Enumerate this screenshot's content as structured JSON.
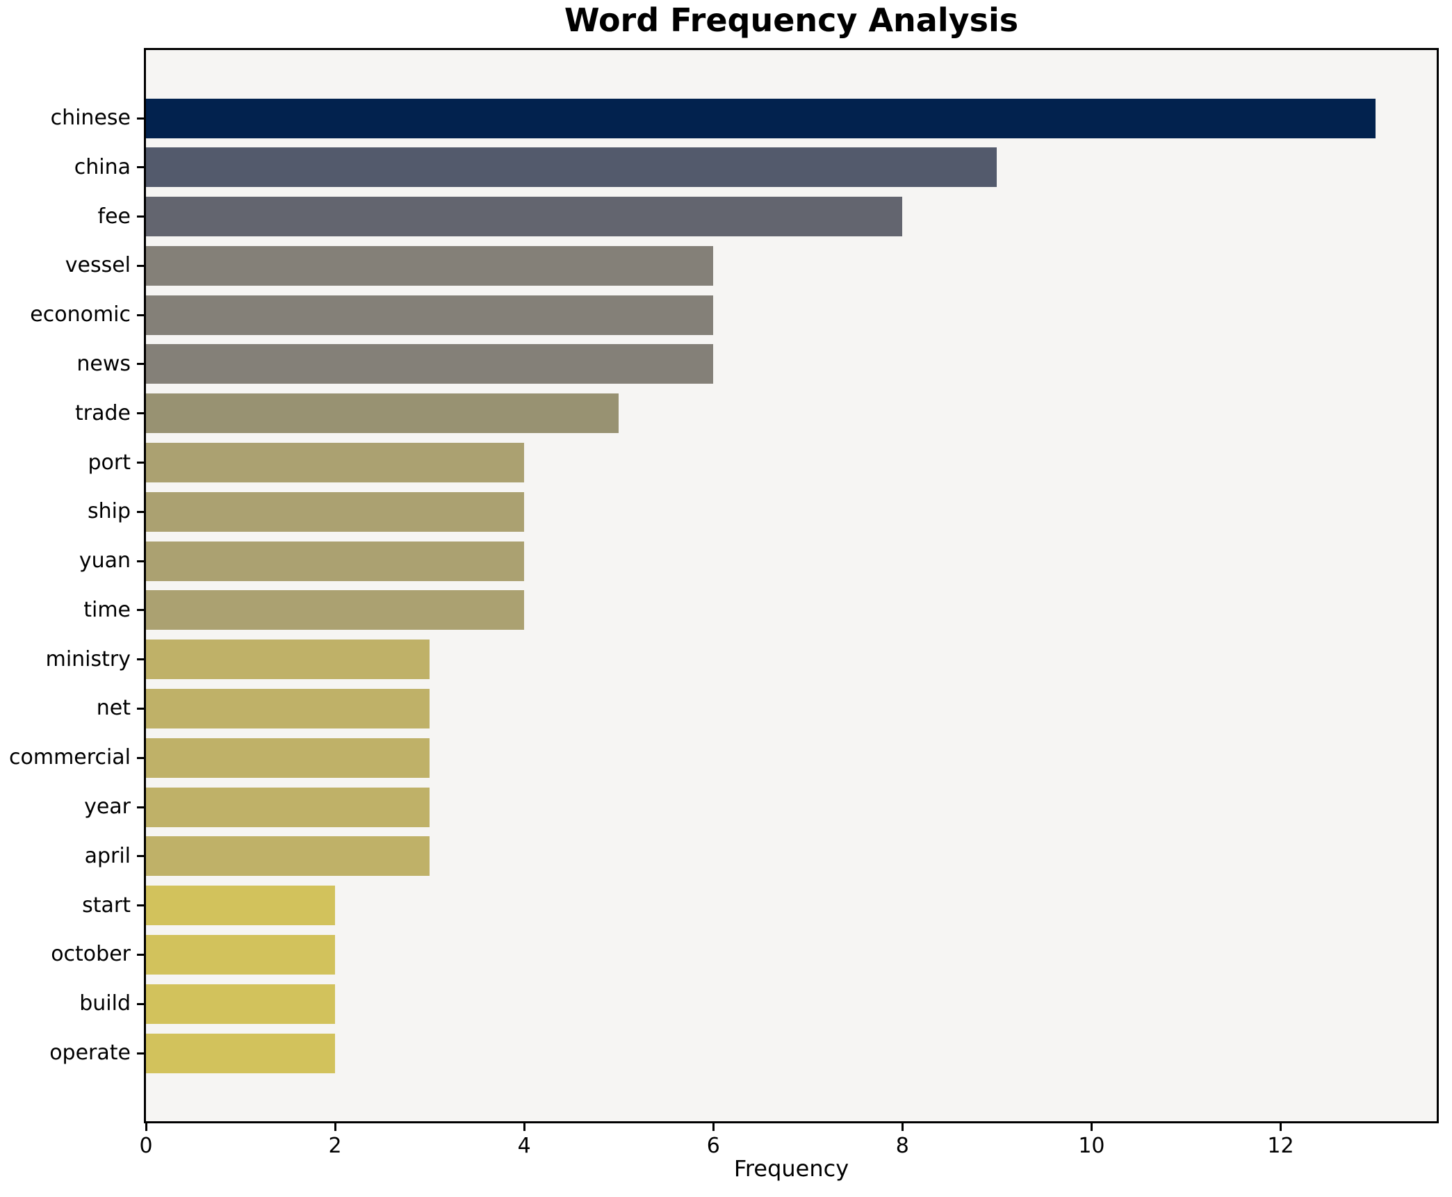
{
  "chart_data": {
    "type": "bar",
    "orientation": "horizontal",
    "title": "Word Frequency Analysis",
    "xlabel": "Frequency",
    "ylabel": "",
    "categories": [
      "chinese",
      "china",
      "fee",
      "vessel",
      "economic",
      "news",
      "trade",
      "port",
      "ship",
      "yuan",
      "time",
      "ministry",
      "net",
      "commercial",
      "year",
      "april",
      "start",
      "october",
      "build",
      "operate"
    ],
    "values": [
      13,
      9,
      8,
      6,
      6,
      6,
      5,
      4,
      4,
      4,
      4,
      3,
      3,
      3,
      3,
      3,
      2,
      2,
      2,
      2
    ],
    "bar_colors": [
      "#02224e",
      "#535a6c",
      "#63656f",
      "#848078",
      "#848078",
      "#848078",
      "#989272",
      "#aba171",
      "#aba171",
      "#aba171",
      "#aba171",
      "#bfb168",
      "#bfb168",
      "#bfb168",
      "#bfb168",
      "#bfb168",
      "#d2c25c",
      "#d2c25c",
      "#d2c25c",
      "#d2c25c"
    ],
    "x_ticks": [
      0,
      2,
      4,
      6,
      8,
      10,
      12
    ],
    "xlim": [
      0,
      13.65
    ],
    "grid": false,
    "legend": false,
    "colormap": "cividis-reversed-by-value",
    "plot_bg": "#f6f5f3",
    "figure_bg": "#ffffff",
    "spine_color": "#000000",
    "text_color": "#000000"
  }
}
